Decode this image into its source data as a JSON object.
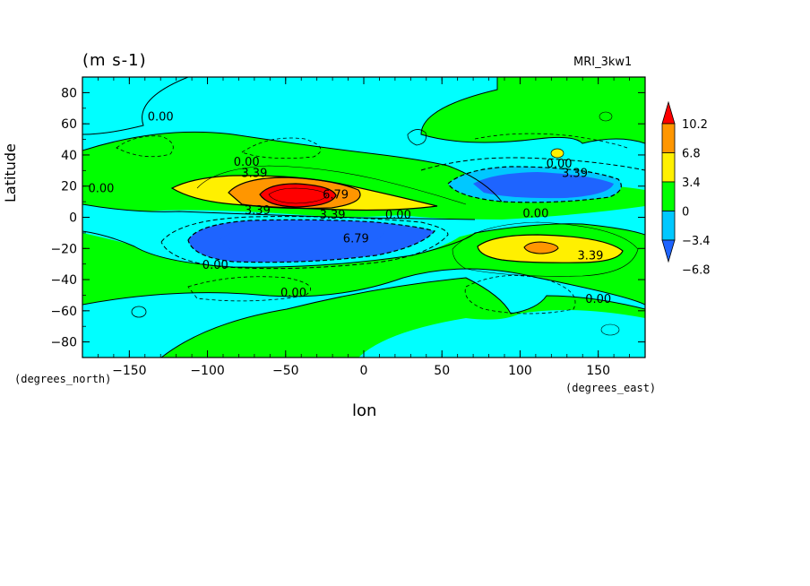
{
  "chart_data": {
    "type": "heatmap",
    "subtype": "filled-contour",
    "title_left": "(m s-1)",
    "title_right": "MRI_3kw1",
    "xlabel": "lon",
    "ylabel": "Latitude",
    "x_unit_label": "(degrees_east)",
    "y_unit_label": "(degrees_north)",
    "xlim": [
      -180,
      180
    ],
    "ylim": [
      -90,
      90
    ],
    "x_ticks": [
      -150,
      -100,
      -50,
      0,
      50,
      100,
      150
    ],
    "y_ticks": [
      -80,
      -60,
      -40,
      -20,
      0,
      20,
      40,
      60,
      80
    ],
    "colorbar": {
      "levels": [
        -6.8,
        -3.4,
        0,
        3.4,
        6.8,
        10.2
      ],
      "tick_labels": [
        "10.2",
        "6.8",
        "3.4",
        "0",
        "−3.4",
        "−6.8"
      ],
      "colors": [
        "#1e64ff",
        "#00c8ff",
        "#00ff00",
        "#fff000",
        "#ff9600",
        "#ff0000"
      ]
    },
    "contour_labels": [
      {
        "text": "0.00",
        "lon": -130,
        "lat": 62
      },
      {
        "text": "0.00",
        "lon": -75,
        "lat": 33
      },
      {
        "text": "0.00",
        "lon": -168,
        "lat": 16
      },
      {
        "text": "3.39",
        "lon": -70,
        "lat": 26
      },
      {
        "text": "6.79",
        "lon": -18,
        "lat": 12
      },
      {
        "text": "3.39",
        "lon": -68,
        "lat": 2
      },
      {
        "text": "3.39",
        "lon": -20,
        "lat": -1
      },
      {
        "text": "0.00",
        "lon": 22,
        "lat": -1
      },
      {
        "text": "6.79",
        "lon": -5,
        "lat": -16
      },
      {
        "text": "0.00",
        "lon": -95,
        "lat": -33
      },
      {
        "text": "0.00",
        "lon": -45,
        "lat": -51
      },
      {
        "text": "0.00",
        "lon": 125,
        "lat": 32
      },
      {
        "text": "3.39",
        "lon": 135,
        "lat": 26
      },
      {
        "text": "0.00",
        "lon": 110,
        "lat": 0
      },
      {
        "text": "3.39",
        "lon": 145,
        "lat": -27
      },
      {
        "text": "0.00",
        "lon": 150,
        "lat": -55
      }
    ],
    "features": [
      {
        "kind": "max",
        "lon": -50,
        "lat": 12,
        "approx_value": 10.5
      },
      {
        "kind": "min",
        "lon": -50,
        "lat": -15,
        "approx_value": -7.5
      },
      {
        "kind": "min",
        "lon": 100,
        "lat": 20,
        "approx_value": -6
      },
      {
        "kind": "max",
        "lon": 110,
        "lat": -18,
        "approx_value": 7
      }
    ]
  }
}
